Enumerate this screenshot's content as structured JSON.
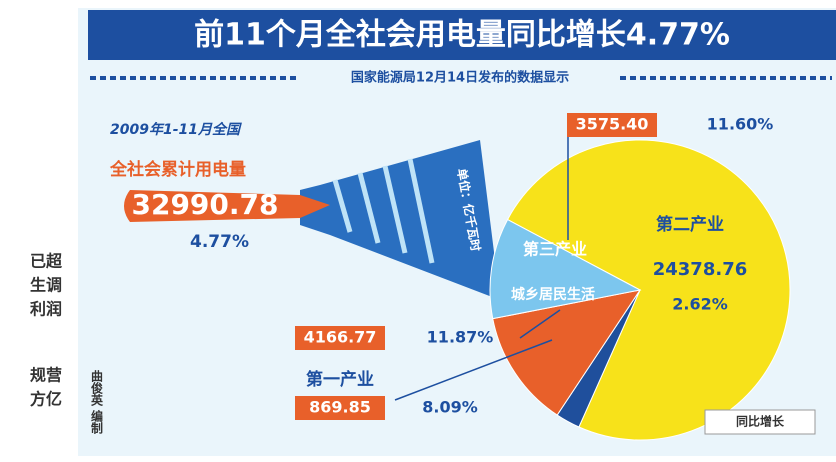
{
  "title": "前11个月全社会用电量同比增长4.77%",
  "subtitle": "国家能源局12月14日发布的数据显示",
  "chart_data": {
    "type": "pie",
    "categories": [
      "第二产业",
      "第一产业",
      "城乡居民生活",
      "第三产业"
    ],
    "values": [
      24378.76,
      869.85,
      4166.77,
      3575.4
    ],
    "value_labels": [
      "24378.76",
      "869.85",
      "4166.77",
      "3575.40"
    ],
    "colors": [
      "#f7e21a",
      "#1f4f9c",
      "#e8602a",
      "#7cc6ee"
    ],
    "growth_name": "同比增长",
    "growth_labels": [
      "2.62%",
      "8.09%",
      "11.87%",
      "11.60%"
    ],
    "unit": "单位：亿千瓦时"
  },
  "total": {
    "period": "2009年1-11月全国",
    "label": "全社会累计用电量",
    "value": "32990.78",
    "growth": "4.77%"
  },
  "credit": "曲俊英 编制",
  "fragments": [
    "已超",
    "生调",
    "利润",
    "规营",
    "方亿"
  ]
}
